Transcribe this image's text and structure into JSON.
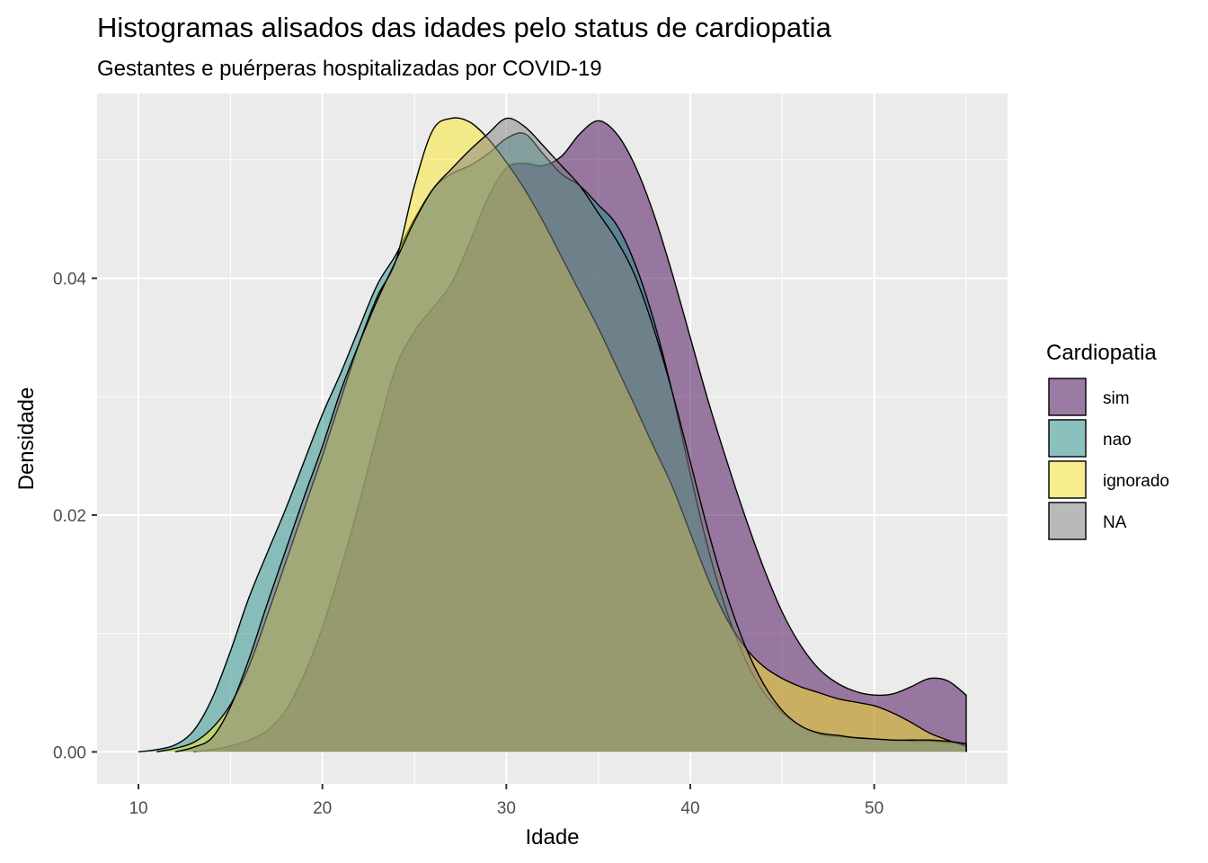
{
  "chart_data": {
    "type": "area",
    "title": "Histogramas alisados das idades pelo status de cardiopatia",
    "subtitle": "Gestantes e puérperas hospitalizadas por COVID-19",
    "xlabel": "Idade",
    "ylabel": "Densidade",
    "xlim": [
      7.75,
      57.25
    ],
    "ylim": [
      -0.0027,
      0.0556
    ],
    "x_ticks": [
      10,
      20,
      30,
      40,
      50
    ],
    "x_tick_labels": [
      "10",
      "20",
      "30",
      "40",
      "50"
    ],
    "y_ticks": [
      0.0,
      0.02,
      0.04
    ],
    "y_tick_labels": [
      "0.00",
      "0.02",
      "0.04"
    ],
    "grid": true,
    "panel_background": "#ebebeb",
    "legend": {
      "title": "Cardiopatia",
      "position": "right",
      "entries": [
        "sim",
        "nao",
        "ignorado",
        "NA"
      ]
    },
    "series": [
      {
        "name": "sim",
        "color": "#440154",
        "fill_opacity": 0.5,
        "x": [
          13,
          14,
          15,
          16,
          17,
          18,
          19,
          20,
          21,
          22,
          23,
          24,
          25,
          26,
          27,
          28,
          29,
          30,
          31,
          32,
          33,
          34,
          35,
          36,
          37,
          38,
          39,
          40,
          41,
          42,
          43,
          44,
          45,
          46,
          47,
          48,
          49,
          50,
          51,
          52,
          53,
          54,
          55
        ],
        "y": [
          0.0,
          0.0002,
          0.0005,
          0.001,
          0.0018,
          0.0035,
          0.0065,
          0.0105,
          0.0155,
          0.021,
          0.027,
          0.0325,
          0.0355,
          0.0375,
          0.0395,
          0.043,
          0.0468,
          0.0493,
          0.0497,
          0.0495,
          0.0503,
          0.0522,
          0.0533,
          0.0522,
          0.0495,
          0.0455,
          0.0405,
          0.035,
          0.0295,
          0.0245,
          0.0198,
          0.0155,
          0.0118,
          0.009,
          0.007,
          0.0058,
          0.0051,
          0.0048,
          0.0049,
          0.0055,
          0.0062,
          0.006,
          0.0048
        ]
      },
      {
        "name": "nao",
        "color": "#21908c",
        "fill_opacity": 0.5,
        "x": [
          10,
          11,
          12,
          13,
          14,
          15,
          16,
          17,
          18,
          19,
          20,
          21,
          22,
          23,
          24,
          25,
          26,
          27,
          28,
          29,
          30,
          31,
          32,
          33,
          34,
          35,
          36,
          37,
          38,
          39,
          40,
          41,
          42,
          43,
          44,
          45,
          46,
          47,
          48,
          49,
          50,
          51,
          52,
          53,
          54,
          55
        ],
        "y": [
          0.0,
          0.0002,
          0.0006,
          0.0018,
          0.0045,
          0.0085,
          0.013,
          0.0168,
          0.0205,
          0.0245,
          0.0285,
          0.032,
          0.0358,
          0.0395,
          0.042,
          0.045,
          0.0475,
          0.0488,
          0.0495,
          0.0505,
          0.0518,
          0.0522,
          0.0505,
          0.0488,
          0.0478,
          0.0462,
          0.0445,
          0.0412,
          0.0365,
          0.0305,
          0.0235,
          0.017,
          0.0118,
          0.0078,
          0.005,
          0.0033,
          0.0022,
          0.0015,
          0.0013,
          0.0012,
          0.0011,
          0.001,
          0.0009,
          0.0009,
          0.0008,
          0.0007
        ]
      },
      {
        "name": "ignorado",
        "color": "#fde725",
        "fill_opacity": 0.5,
        "x": [
          11,
          12,
          13,
          14,
          15,
          16,
          17,
          18,
          19,
          20,
          21,
          22,
          23,
          24,
          25,
          26,
          27,
          28,
          29,
          30,
          31,
          32,
          33,
          34,
          35,
          36,
          37,
          38,
          39,
          40,
          41,
          42,
          43,
          44,
          45,
          46,
          47,
          48,
          49,
          50,
          51,
          52,
          53,
          54,
          55
        ],
        "y": [
          0.0,
          0.0003,
          0.0008,
          0.002,
          0.004,
          0.0072,
          0.0115,
          0.016,
          0.0205,
          0.025,
          0.0298,
          0.0345,
          0.0385,
          0.0415,
          0.0478,
          0.0525,
          0.0535,
          0.0532,
          0.0518,
          0.0498,
          0.0475,
          0.0448,
          0.0418,
          0.0388,
          0.0358,
          0.0325,
          0.0292,
          0.0258,
          0.0225,
          0.0185,
          0.0145,
          0.0112,
          0.0088,
          0.0072,
          0.0062,
          0.0055,
          0.005,
          0.0045,
          0.0042,
          0.0039,
          0.0033,
          0.0025,
          0.0016,
          0.001,
          0.0005
        ]
      },
      {
        "name": "NA",
        "color": "#7f7f7f",
        "fill_opacity": 0.5,
        "x": [
          12,
          13,
          14,
          15,
          16,
          17,
          18,
          19,
          20,
          21,
          22,
          23,
          24,
          25,
          26,
          27,
          28,
          29,
          30,
          31,
          32,
          33,
          34,
          35,
          36,
          37,
          38,
          39,
          40,
          41,
          42,
          43,
          44,
          45,
          46,
          47,
          48,
          49,
          50,
          51,
          52,
          53,
          54,
          55
        ],
        "y": [
          0.0,
          0.0004,
          0.0012,
          0.0038,
          0.0078,
          0.0125,
          0.017,
          0.0215,
          0.0258,
          0.0305,
          0.0345,
          0.0382,
          0.0415,
          0.0448,
          0.0475,
          0.0492,
          0.0508,
          0.0522,
          0.0535,
          0.0528,
          0.0512,
          0.0495,
          0.0478,
          0.0455,
          0.0432,
          0.0402,
          0.0358,
          0.0305,
          0.0245,
          0.0185,
          0.0132,
          0.0089,
          0.0057,
          0.0035,
          0.0022,
          0.0016,
          0.0014,
          0.0012,
          0.0011,
          0.001,
          0.001,
          0.001,
          0.0009,
          0.0007
        ]
      }
    ]
  }
}
